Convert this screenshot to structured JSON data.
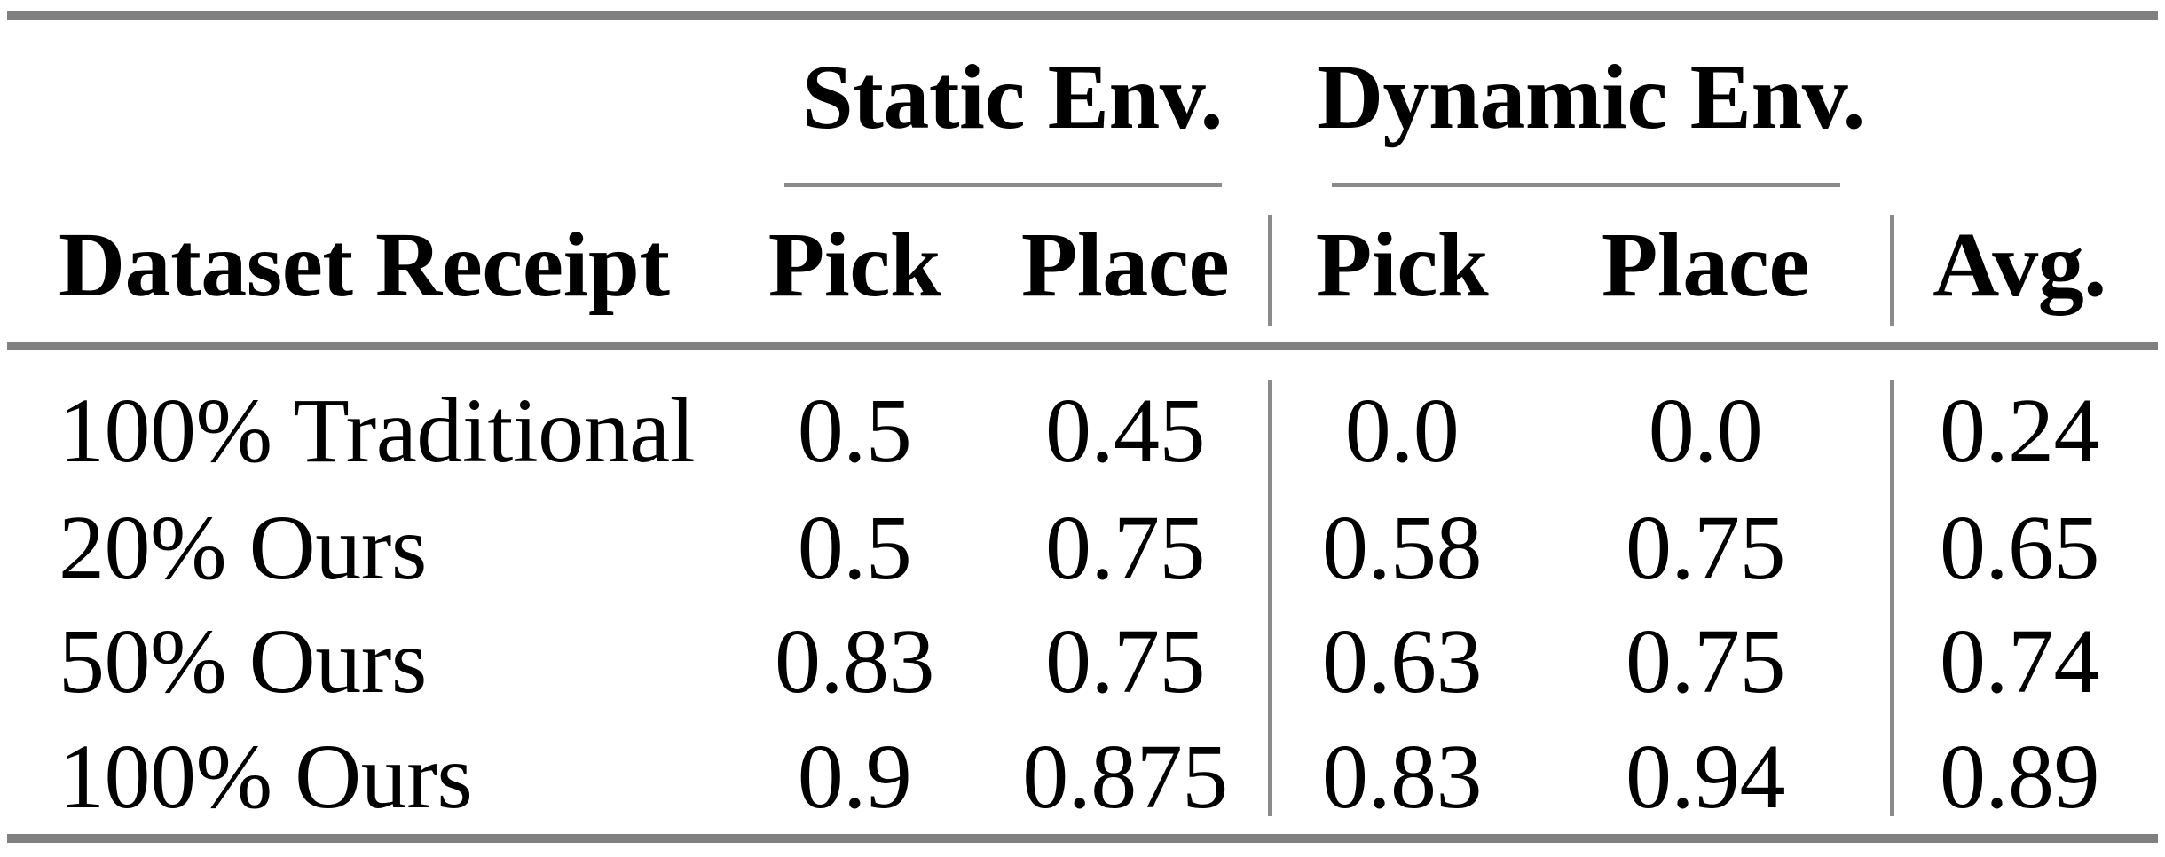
{
  "table": {
    "group_headers": [
      {
        "label": "Static Env."
      },
      {
        "label": "Dynamic Env."
      }
    ],
    "columns": {
      "label": "Dataset Receipt",
      "static_pick": "Pick",
      "static_place": "Place",
      "dynamic_pick": "Pick",
      "dynamic_place": "Place",
      "avg": "Avg."
    },
    "rows": [
      {
        "label": "100% Traditional",
        "static_pick": "0.5",
        "static_place": "0.45",
        "dynamic_pick": "0.0",
        "dynamic_place": "0.0",
        "avg": "0.24"
      },
      {
        "label": "20% Ours",
        "static_pick": "0.5",
        "static_place": "0.75",
        "dynamic_pick": "0.58",
        "dynamic_place": "0.75",
        "avg": "0.65"
      },
      {
        "label": "50% Ours",
        "static_pick": "0.83",
        "static_place": "0.75",
        "dynamic_pick": "0.63",
        "dynamic_place": "0.75",
        "avg": "0.74"
      },
      {
        "label": "100% Ours",
        "static_pick": "0.9",
        "static_place": "0.875",
        "dynamic_pick": "0.83",
        "dynamic_place": "0.94",
        "avg": "0.89"
      }
    ],
    "colors": {
      "rule_gray": "#808080",
      "thin_rule_gray": "#8a8a8a",
      "text": "#000000",
      "background": "#ffffff"
    }
  },
  "chart_data": {
    "type": "table",
    "title": "",
    "column_groups": [
      "",
      "Static Env.",
      "Static Env.",
      "Dynamic Env.",
      "Dynamic Env.",
      ""
    ],
    "columns": [
      "Dataset Receipt",
      "Pick",
      "Place",
      "Pick",
      "Place",
      "Avg."
    ],
    "rows": [
      [
        "100% Traditional",
        0.5,
        0.45,
        0.0,
        0.0,
        0.24
      ],
      [
        "20% Ours",
        0.5,
        0.75,
        0.58,
        0.75,
        0.65
      ],
      [
        "50% Ours",
        0.83,
        0.75,
        0.63,
        0.75,
        0.74
      ],
      [
        "100% Ours",
        0.9,
        0.875,
        0.83,
        0.94,
        0.89
      ]
    ]
  }
}
